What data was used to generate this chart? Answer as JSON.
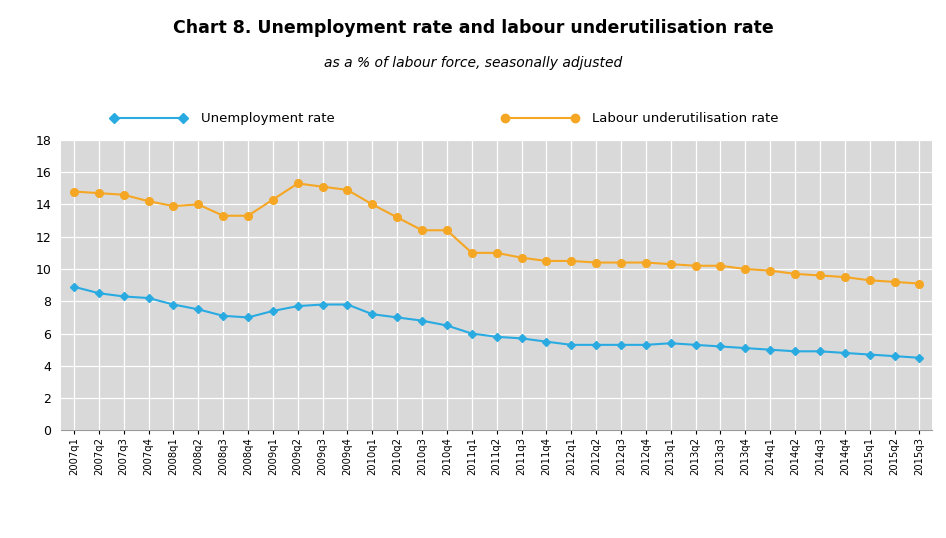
{
  "title": "Chart 8. Unemployment rate and labour underutilisation rate",
  "subtitle": "as a % of labour force, seasonally adjusted",
  "plot_bg_color": "#d9d9d9",
  "legend_bg_color": "#d9d9d9",
  "x_labels": [
    "2007q1",
    "2007q2",
    "2007q3",
    "2007q4",
    "2008q1",
    "2008q2",
    "2008q3",
    "2008q4",
    "2009q1",
    "2009q2",
    "2009q3",
    "2009q4",
    "2010q1",
    "2010q2",
    "2010q3",
    "2010q4",
    "2011q1",
    "2011q2",
    "2011q3",
    "2011q4",
    "2012q1",
    "2012q2",
    "2012q3",
    "2012q4",
    "2013q1",
    "2013q2",
    "2013q3",
    "2013q4",
    "2014q1",
    "2014q2",
    "2014q3",
    "2014q4",
    "2015q1",
    "2015q2",
    "2015q3"
  ],
  "unemployment_rate": [
    8.9,
    8.5,
    8.3,
    8.2,
    7.8,
    7.5,
    7.1,
    7.0,
    7.4,
    7.7,
    7.8,
    7.8,
    7.2,
    7.0,
    6.8,
    6.5,
    6.0,
    5.8,
    5.7,
    5.5,
    5.3,
    5.3,
    5.3,
    5.3,
    5.4,
    5.3,
    5.2,
    5.1,
    5.0,
    4.9,
    4.9,
    4.8,
    4.7,
    4.6,
    4.5
  ],
  "labour_underutilisation_rate": [
    14.8,
    14.7,
    14.6,
    14.2,
    13.9,
    14.0,
    13.3,
    13.3,
    14.3,
    15.3,
    15.1,
    14.9,
    14.0,
    13.2,
    12.4,
    12.4,
    11.0,
    11.0,
    10.7,
    10.5,
    10.5,
    10.4,
    10.4,
    10.4,
    10.3,
    10.2,
    10.2,
    10.0,
    9.9,
    9.7,
    9.6,
    9.5,
    9.3,
    9.2,
    9.1
  ],
  "unemployment_color": "#29abe2",
  "labour_color": "#f5a623",
  "ylim": [
    0,
    18
  ],
  "yticks": [
    0,
    2,
    4,
    6,
    8,
    10,
    12,
    14,
    16,
    18
  ],
  "legend_unemployment": "Unemployment rate",
  "legend_labour": "Labour underutilisation rate"
}
